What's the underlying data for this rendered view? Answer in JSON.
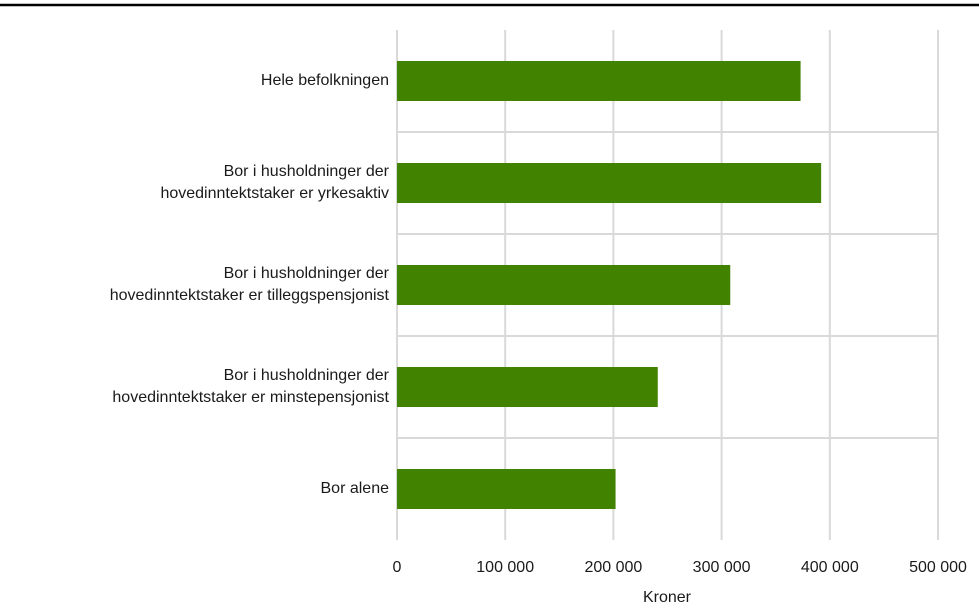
{
  "chart_data": {
    "type": "barh",
    "xlabel": "Kroner",
    "categories": [
      "Hele befolkningen",
      "Bor i husholdninger der\nhovedinntektstaker er yrkesaktiv",
      "Bor i husholdninger der\nhovedinntektstaker er tilleggspensjonist",
      "Bor i husholdninger der\nhovedinntektstaker er minstepensjonist",
      "Bor alene"
    ],
    "values": [
      373000,
      392000,
      308000,
      241000,
      202000
    ],
    "color": "#418200",
    "xlim": [
      0,
      500000
    ],
    "xticks": [
      0,
      {
        "value": 100000,
        "label": "100 000"
      },
      {
        "value": 200000,
        "label": "200 000"
      },
      {
        "value": 300000,
        "label": "300 000"
      },
      {
        "value": 400000,
        "label": "400 000"
      },
      {
        "value": 500000,
        "label": "500 000"
      }
    ],
    "grid": true
  }
}
